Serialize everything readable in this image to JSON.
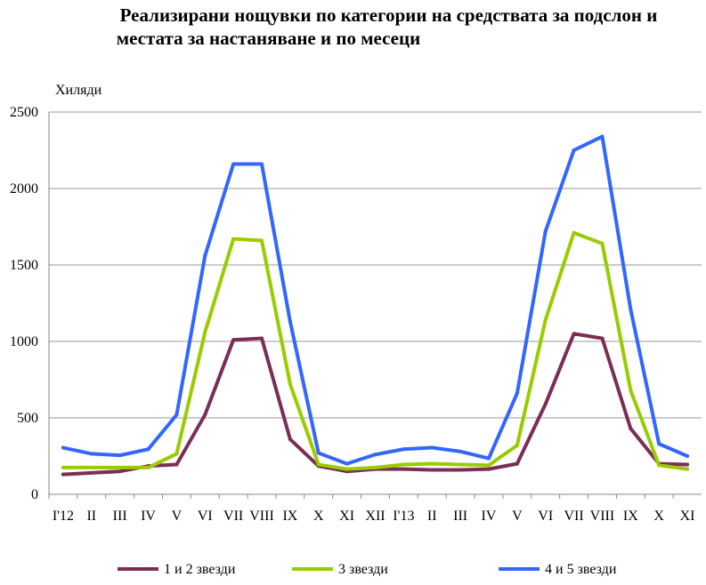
{
  "title": {
    "line1": "Реализирани нощувки по категории на средствата за подслон и",
    "line2": "местата за настаняване и по месеци"
  },
  "chart_data": {
    "type": "line",
    "unit_label": "Хиляди",
    "categories": [
      "I'12",
      "II",
      "III",
      "IV",
      "V",
      "VI",
      "VII",
      "VIII",
      "IX",
      "X",
      "XI",
      "XII",
      "I'13",
      "II",
      "III",
      "IV",
      "V",
      "VI",
      "VII",
      "VIII",
      "IX",
      "X",
      "XI"
    ],
    "ylim": [
      0,
      2500
    ],
    "yticks": [
      0,
      500,
      1000,
      1500,
      2000,
      2500
    ],
    "grid": true,
    "legend_position": "bottom",
    "series": [
      {
        "name": "1 и 2 звезди",
        "color": "#7b2d55",
        "values": [
          130,
          140,
          150,
          185,
          195,
          520,
          1010,
          1020,
          360,
          185,
          150,
          165,
          165,
          160,
          160,
          165,
          200,
          590,
          1050,
          1020,
          430,
          200,
          195
        ]
      },
      {
        "name": "3 звезди",
        "color": "#99cc00",
        "values": [
          175,
          175,
          175,
          175,
          265,
          1060,
          1670,
          1660,
          720,
          195,
          165,
          175,
          195,
          200,
          195,
          190,
          320,
          1140,
          1710,
          1640,
          680,
          190,
          165
        ]
      },
      {
        "name": "4 и 5 звезди",
        "color": "#3366ff",
        "values": [
          305,
          265,
          255,
          295,
          520,
          1560,
          2160,
          2160,
          1130,
          270,
          200,
          260,
          295,
          305,
          280,
          235,
          660,
          1720,
          2250,
          2340,
          1210,
          330,
          250
        ]
      }
    ]
  }
}
